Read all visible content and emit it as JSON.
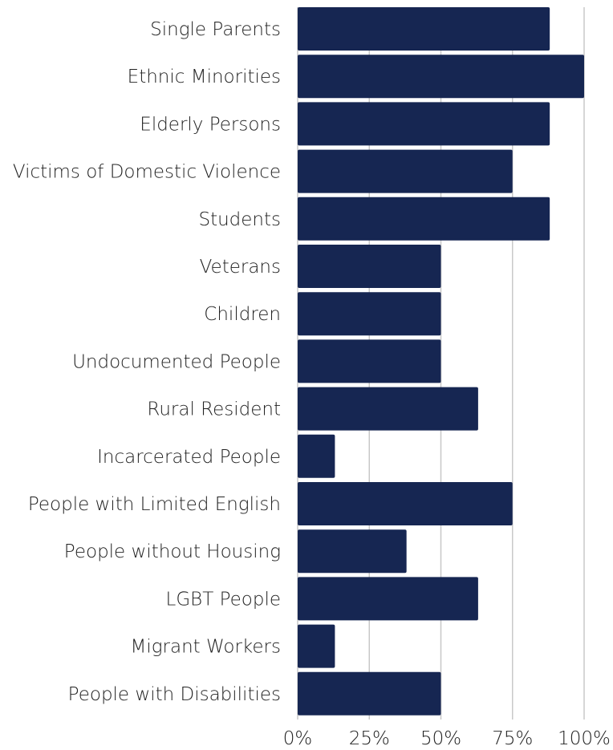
{
  "chart_data": {
    "type": "bar",
    "orientation": "horizontal",
    "categories": [
      "Single Parents",
      "Ethnic Minorities",
      "Elderly Persons",
      "Victims of Domestic Violence",
      "Students",
      "Veterans",
      "Children",
      "Undocumented People",
      "Rural Resident",
      "Incarcerated People",
      "People with Limited English",
      "People without Housing",
      "LGBT People",
      "Migrant Workers",
      "People with Disabilities"
    ],
    "values": [
      88,
      100,
      88,
      75,
      88,
      50,
      50,
      50,
      63,
      13,
      75,
      38,
      63,
      13,
      50
    ],
    "xlim": [
      0,
      100
    ],
    "xticks": [
      0,
      25,
      50,
      75,
      100
    ],
    "xtick_labels": [
      "0%",
      "25%",
      "50%",
      "75%",
      "100%"
    ],
    "bar_color": "#162652",
    "grid": true,
    "title": "",
    "xlabel": "",
    "ylabel": ""
  }
}
